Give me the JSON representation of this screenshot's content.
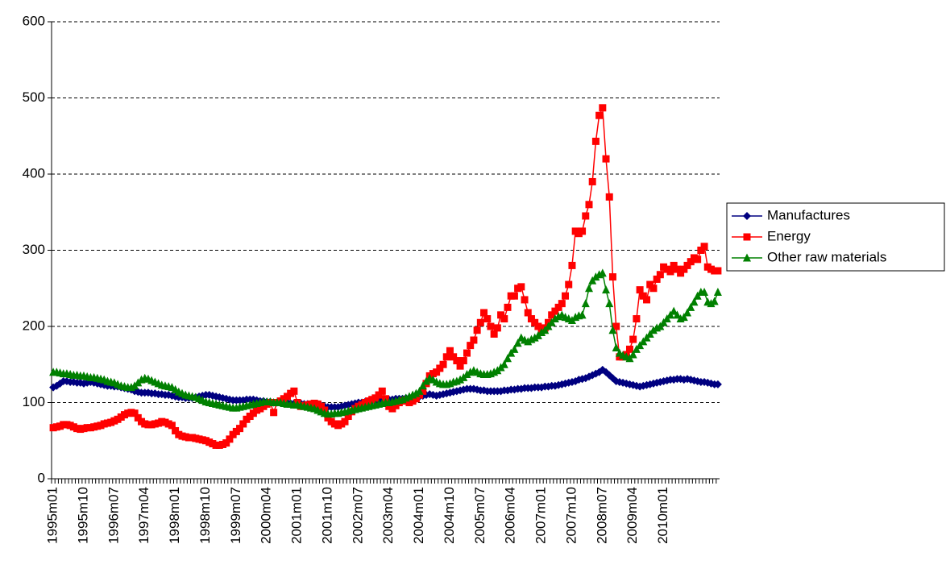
{
  "chart_data": {
    "type": "line",
    "categories": [
      "1995m01",
      null,
      null,
      null,
      null,
      null,
      null,
      null,
      null,
      "1995m10",
      null,
      null,
      null,
      null,
      null,
      null,
      null,
      null,
      "1996m07",
      null,
      null,
      null,
      null,
      null,
      null,
      null,
      null,
      "1997m04",
      null,
      null,
      null,
      null,
      null,
      null,
      null,
      null,
      "1998m01",
      null,
      null,
      null,
      null,
      null,
      null,
      null,
      null,
      "1998m10",
      null,
      null,
      null,
      null,
      null,
      null,
      null,
      null,
      "1999m07",
      null,
      null,
      null,
      null,
      null,
      null,
      null,
      null,
      "2000m04",
      null,
      null,
      null,
      null,
      null,
      null,
      null,
      null,
      "2001m01",
      null,
      null,
      null,
      null,
      null,
      null,
      null,
      null,
      "2001m10",
      null,
      null,
      null,
      null,
      null,
      null,
      null,
      null,
      "2002m07",
      null,
      null,
      null,
      null,
      null,
      null,
      null,
      null,
      "2003m04",
      null,
      null,
      null,
      null,
      null,
      null,
      null,
      null,
      "2004m01",
      null,
      null,
      null,
      null,
      null,
      null,
      null,
      null,
      "2004m10",
      null,
      null,
      null,
      null,
      null,
      null,
      null,
      null,
      "2005m07",
      null,
      null,
      null,
      null,
      null,
      null,
      null,
      null,
      "2006m04",
      null,
      null,
      null,
      null,
      null,
      null,
      null,
      null,
      "2007m01",
      null,
      null,
      null,
      null,
      null,
      null,
      null,
      null,
      "2007m10",
      null,
      null,
      null,
      null,
      null,
      null,
      null,
      null,
      "2008m07",
      null,
      null,
      null,
      null,
      null,
      null,
      null,
      null,
      "2009m04",
      null,
      null,
      null,
      null,
      null,
      null,
      null,
      null,
      "2010m01",
      null,
      null,
      null,
      null,
      null,
      null,
      null,
      null,
      null,
      null,
      null,
      null,
      null,
      null,
      null,
      null
    ],
    "series": [
      {
        "name": "Manufactures",
        "color": "#000080",
        "marker": "diamond",
        "values": [
          120,
          122,
          125,
          128,
          128,
          127,
          127,
          126,
          126,
          125,
          126,
          127,
          126,
          125,
          124,
          123,
          122,
          122,
          121,
          121,
          120,
          119,
          118,
          117,
          115,
          114,
          113,
          113,
          113,
          112,
          112,
          111,
          111,
          110,
          110,
          109,
          108,
          107,
          107,
          106,
          106,
          106,
          107,
          108,
          109,
          110,
          110,
          109,
          108,
          107,
          106,
          105,
          104,
          103,
          103,
          103,
          103,
          104,
          104,
          104,
          103,
          102,
          102,
          101,
          101,
          100,
          100,
          100,
          100,
          100,
          99,
          99,
          99,
          99,
          98,
          98,
          97,
          97,
          96,
          96,
          95,
          94,
          94,
          94,
          94,
          95,
          96,
          97,
          98,
          99,
          100,
          100,
          101,
          101,
          102,
          102,
          102,
          103,
          103,
          104,
          104,
          105,
          105,
          105,
          106,
          106,
          107,
          107,
          108,
          109,
          110,
          111,
          110,
          109,
          110,
          111,
          112,
          113,
          114,
          115,
          116,
          117,
          118,
          118,
          118,
          117,
          116,
          116,
          115,
          115,
          115,
          115,
          115,
          116,
          116,
          117,
          117,
          118,
          118,
          119,
          119,
          119,
          120,
          120,
          120,
          121,
          121,
          122,
          122,
          123,
          124,
          125,
          126,
          127,
          128,
          130,
          131,
          132,
          134,
          136,
          138,
          140,
          143,
          140,
          136,
          132,
          128,
          127,
          126,
          125,
          124,
          123,
          122,
          121,
          122,
          123,
          124,
          125,
          126,
          127,
          128,
          129,
          130,
          130,
          131,
          131,
          130,
          131,
          130,
          129,
          128,
          127,
          127,
          126,
          125,
          124,
          124
        ]
      },
      {
        "name": "Energy",
        "color": "#ff0000",
        "marker": "square",
        "values": [
          67,
          68,
          69,
          71,
          71,
          70,
          68,
          66,
          65,
          66,
          67,
          67,
          68,
          69,
          70,
          72,
          73,
          74,
          76,
          78,
          81,
          84,
          86,
          87,
          86,
          80,
          75,
          72,
          71,
          71,
          72,
          73,
          75,
          74,
          72,
          70,
          63,
          58,
          56,
          55,
          54,
          54,
          53,
          52,
          51,
          50,
          48,
          46,
          44,
          44,
          45,
          47,
          52,
          58,
          62,
          66,
          72,
          78,
          82,
          86,
          90,
          92,
          95,
          98,
          100,
          87,
          100,
          102,
          105,
          108,
          112,
          115,
          100,
          95,
          96,
          97,
          98,
          99,
          98,
          95,
          90,
          80,
          75,
          72,
          70,
          72,
          75,
          82,
          88,
          92,
          95,
          97,
          100,
          102,
          104,
          106,
          110,
          115,
          105,
          95,
          92,
          96,
          100,
          102,
          103,
          100,
          102,
          105,
          110,
          115,
          125,
          135,
          138,
          140,
          145,
          150,
          160,
          168,
          160,
          155,
          148,
          155,
          165,
          175,
          182,
          195,
          205,
          218,
          210,
          200,
          190,
          198,
          215,
          210,
          225,
          240,
          240,
          250,
          252,
          235,
          218,
          210,
          205,
          200,
          195,
          198,
          205,
          215,
          220,
          225,
          230,
          240,
          255,
          280,
          325,
          322,
          325,
          345,
          360,
          390,
          443,
          477,
          487,
          420,
          370,
          265,
          200,
          160,
          160,
          163,
          170,
          183,
          210,
          248,
          240,
          235,
          255,
          250,
          262,
          268,
          278,
          275,
          272,
          280,
          275,
          270,
          275,
          280,
          285,
          290,
          288,
          300,
          305,
          278,
          275,
          273,
          273
        ]
      },
      {
        "name": "Other raw materials",
        "color": "#008000",
        "marker": "triangle",
        "values": [
          140,
          140,
          139,
          138,
          138,
          137,
          136,
          136,
          135,
          135,
          134,
          133,
          133,
          132,
          131,
          130,
          128,
          127,
          126,
          124,
          122,
          121,
          120,
          120,
          122,
          126,
          130,
          132,
          131,
          129,
          127,
          125,
          123,
          122,
          121,
          120,
          117,
          114,
          112,
          110,
          109,
          108,
          107,
          105,
          103,
          101,
          100,
          99,
          98,
          97,
          96,
          95,
          94,
          93,
          93,
          94,
          95,
          96,
          97,
          98,
          99,
          100,
          101,
          101,
          101,
          100,
          100,
          100,
          99,
          98,
          98,
          97,
          97,
          96,
          95,
          94,
          93,
          92,
          90,
          88,
          86,
          85,
          85,
          86,
          86,
          87,
          88,
          89,
          90,
          91,
          92,
          93,
          94,
          95,
          96,
          97,
          98,
          99,
          100,
          100,
          101,
          102,
          103,
          104,
          106,
          108,
          110,
          112,
          115,
          122,
          128,
          132,
          130,
          127,
          125,
          124,
          124,
          125,
          127,
          128,
          130,
          133,
          137,
          140,
          142,
          140,
          138,
          137,
          137,
          138,
          140,
          142,
          146,
          150,
          158,
          165,
          170,
          178,
          185,
          182,
          180,
          183,
          185,
          188,
          192,
          195,
          200,
          205,
          210,
          213,
          215,
          212,
          210,
          208,
          212,
          214,
          215,
          230,
          250,
          260,
          265,
          268,
          270,
          248,
          230,
          195,
          172,
          165,
          162,
          160,
          158,
          163,
          170,
          175,
          180,
          185,
          190,
          195,
          198,
          200,
          205,
          210,
          215,
          220,
          215,
          210,
          212,
          218,
          225,
          232,
          240,
          245,
          245,
          232,
          230,
          233,
          245
        ]
      }
    ],
    "ylim": [
      0,
      600
    ],
    "yticks": [
      0,
      100,
      200,
      300,
      400,
      500,
      600
    ],
    "grid": true,
    "legend": "right"
  }
}
